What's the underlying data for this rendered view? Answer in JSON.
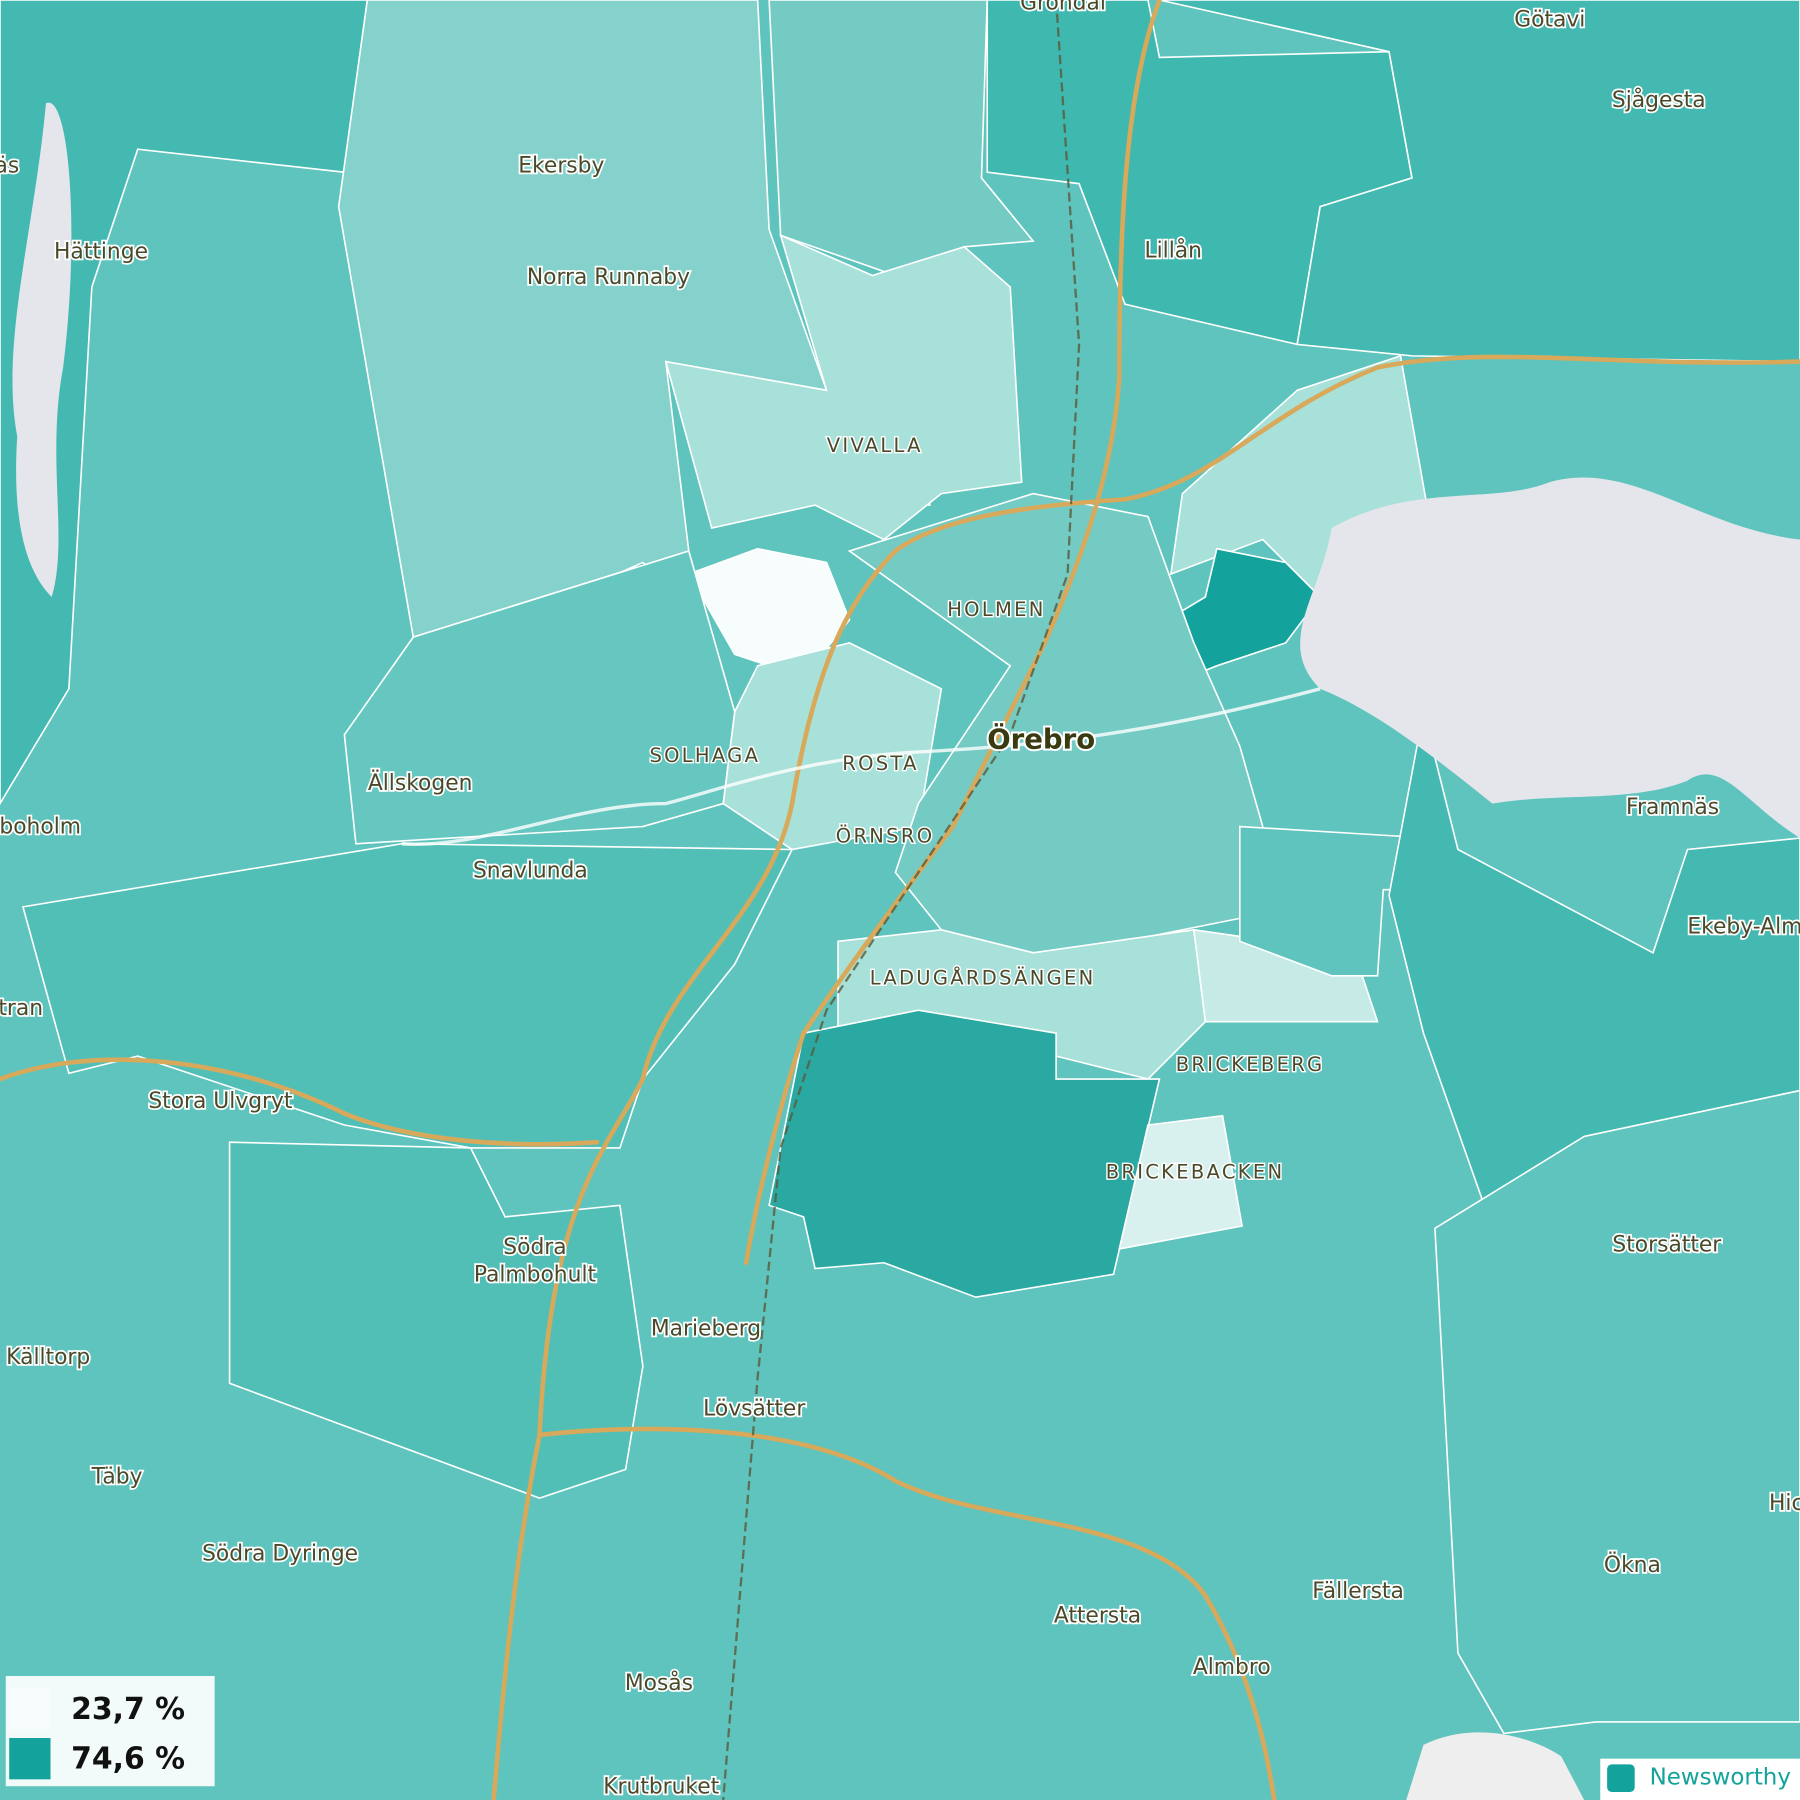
{
  "places": [
    "Gröndal",
    "Götavi",
    "Sjågesta",
    "äs",
    "Ekersby",
    "Hättinge",
    "Norra Runnaby",
    "Lillån",
    "Ällskogen",
    "boholm",
    "Framnäs",
    "Snavlunda",
    "Ekeby-Alm",
    "tran",
    "Stora Ulvgryt",
    "Storsätter",
    "Källtorp",
    "Marieberg",
    "Lövsätter",
    "Täby",
    "Hic",
    "Södra Dyringe",
    "Ökna",
    "Fällersta",
    "Attersta",
    "Almbro",
    "Mosås",
    "Krutbruket"
  ],
  "two_line_place": [
    "Södra",
    "Palmbohult"
  ],
  "city": "Örebro",
  "districts": [
    "VIVALLA",
    "HOLMEN",
    "SOLHAGA",
    "ROSTA",
    "ÖRNSRO",
    "LADUGÅRDSÄNGEN",
    "BRICKEBERG",
    "BRICKEBACKEN"
  ],
  "legend": [
    {
      "label": "23,7 %",
      "color": "#f7fdfc"
    },
    {
      "label": "74,6 %",
      "color": "#13a39c"
    }
  ],
  "brand": "Newsworthy"
}
